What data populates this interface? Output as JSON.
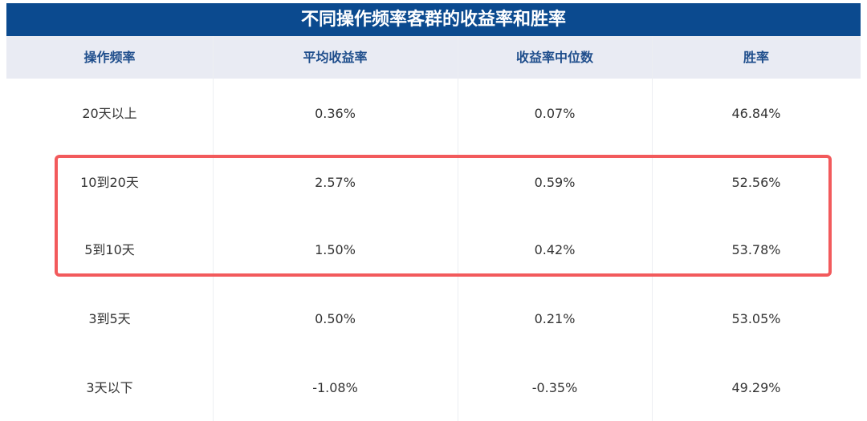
{
  "title": "不同操作频率客群的收益率和胜率",
  "columns": [
    "操作频率",
    "平均收益率",
    "收益率中位数",
    "胜率"
  ],
  "rows": [
    [
      "20天以上",
      "0.36%",
      "0.07%",
      "46.84%"
    ],
    [
      "10到20天",
      "2.57%",
      "0.59%",
      "52.56%"
    ],
    [
      "5到10天",
      "1.50%",
      "0.42%",
      "53.78%"
    ],
    [
      "3到5天",
      "0.50%",
      "0.21%",
      "53.05%"
    ],
    [
      "3天以下",
      "-1.08%",
      "-0.35%",
      "49.29%"
    ]
  ],
  "highlighted_rows": [
    "10到20天",
    "5到10天"
  ],
  "colors": {
    "title_bg": "#0b4a8f",
    "header_bg": "#e9ebf3",
    "header_text": "#1f4e8c",
    "highlight": "#f25a5c"
  }
}
